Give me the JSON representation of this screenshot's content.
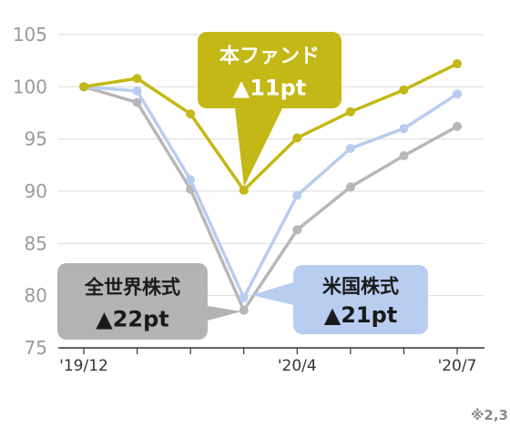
{
  "chart_data": {
    "type": "line",
    "x": [
      "'19/12",
      "",
      "",
      "",
      "'20/4",
      "",
      "",
      "'20/7"
    ],
    "x_tick_labels": [
      {
        "index": 0,
        "label": "'19/12"
      },
      {
        "index": 4,
        "label": "'20/4"
      },
      {
        "index": 7,
        "label": "'20/7"
      }
    ],
    "y_ticks": [
      75,
      80,
      85,
      90,
      95,
      100,
      105
    ],
    "ylim": [
      75,
      107
    ],
    "grid": true,
    "series": [
      {
        "key": "fund",
        "color": "#c3b815",
        "values": [
          100,
          100.8,
          97.4,
          90.1,
          95.1,
          97.6,
          99.7,
          102.2
        ]
      },
      {
        "key": "us",
        "color": "#b8cdf0",
        "values": [
          100,
          99.6,
          91.1,
          79.8,
          89.6,
          94.1,
          96.0,
          99.3
        ]
      },
      {
        "key": "world",
        "color": "#b7b7b7",
        "values": [
          100,
          98.5,
          90.2,
          78.6,
          86.3,
          90.4,
          93.4,
          96.2
        ]
      }
    ],
    "callouts": [
      {
        "key": "fund",
        "line1": "本ファンド",
        "line2": "▲11pt",
        "bg": "#c3b815",
        "color": "#ffffff"
      },
      {
        "key": "world",
        "line1": "全世界株式",
        "line2": "▲22pt",
        "bg": "#b3b3b3",
        "color": "#1a1a1a"
      },
      {
        "key": "us",
        "line1": "米国株式",
        "line2": "▲21pt",
        "bg": "#b8cdf0",
        "color": "#1a1a1a"
      }
    ],
    "footnote": "※2,3"
  }
}
